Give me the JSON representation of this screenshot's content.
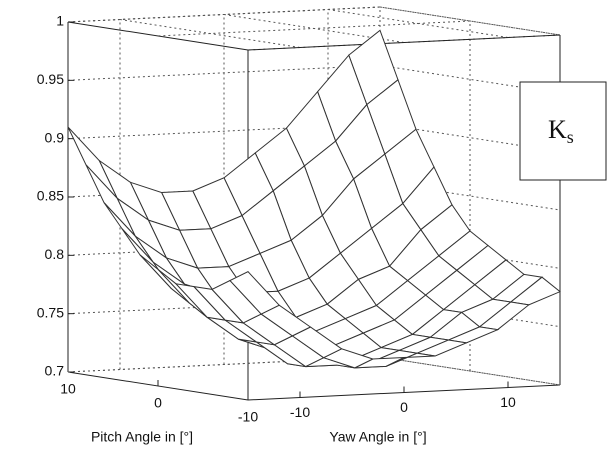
{
  "chart_data": {
    "type": "surface",
    "xlabel": "Yaw Angle in [°]",
    "ylabel": "Pitch Angle in [°]",
    "annotation": {
      "main": "K",
      "sub": "s"
    },
    "x": [
      -15,
      -12,
      -9,
      -6,
      -3,
      0,
      3,
      6,
      9,
      12,
      15
    ],
    "y": [
      10,
      8,
      6,
      4,
      2,
      0,
      -2,
      -4,
      -6,
      -8,
      -10
    ],
    "z": [
      [
        0.91,
        0.88,
        0.86,
        0.85,
        0.85,
        0.86,
        0.88,
        0.9,
        0.93,
        0.96,
        0.98
      ],
      [
        0.88,
        0.85,
        0.83,
        0.82,
        0.82,
        0.83,
        0.85,
        0.87,
        0.89,
        0.92,
        0.94
      ],
      [
        0.85,
        0.82,
        0.8,
        0.79,
        0.79,
        0.8,
        0.81,
        0.83,
        0.86,
        0.88,
        0.9
      ],
      [
        0.83,
        0.8,
        0.78,
        0.77,
        0.77,
        0.77,
        0.78,
        0.8,
        0.82,
        0.84,
        0.87
      ],
      [
        0.81,
        0.78,
        0.76,
        0.75,
        0.75,
        0.75,
        0.76,
        0.78,
        0.79,
        0.82,
        0.84
      ],
      [
        0.8,
        0.77,
        0.75,
        0.74,
        0.73,
        0.74,
        0.75,
        0.76,
        0.78,
        0.8,
        0.82
      ],
      [
        0.79,
        0.76,
        0.74,
        0.73,
        0.72,
        0.73,
        0.74,
        0.75,
        0.77,
        0.79,
        0.81
      ],
      [
        0.79,
        0.76,
        0.74,
        0.72,
        0.72,
        0.72,
        0.73,
        0.74,
        0.76,
        0.78,
        0.8
      ],
      [
        0.79,
        0.76,
        0.74,
        0.72,
        0.72,
        0.72,
        0.73,
        0.74,
        0.76,
        0.77,
        0.79
      ],
      [
        0.8,
        0.77,
        0.75,
        0.73,
        0.72,
        0.72,
        0.73,
        0.74,
        0.75,
        0.77,
        0.79
      ],
      [
        0.81,
        0.78,
        0.76,
        0.74,
        0.73,
        0.73,
        0.73,
        0.74,
        0.75,
        0.77,
        0.78
      ]
    ],
    "xlim": [
      -15,
      15
    ],
    "xticks": [
      -10,
      0,
      10
    ],
    "ylim": [
      -10,
      10
    ],
    "yticks": [
      10,
      0,
      -10
    ],
    "zlim": [
      0.7,
      1
    ],
    "zticks": [
      0.7,
      0.75,
      0.8,
      0.85,
      0.9,
      0.95,
      1
    ],
    "grid": true,
    "color": "#ffffff"
  }
}
